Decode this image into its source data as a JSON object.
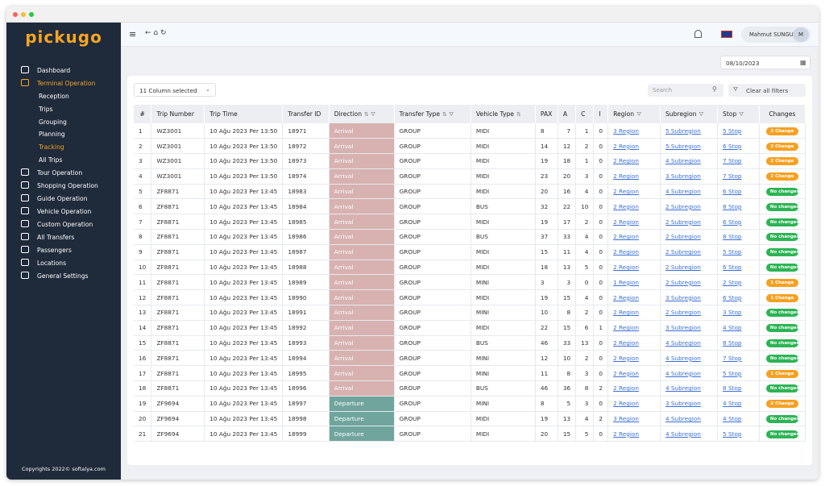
{
  "sidebar": {
    "logo": "pickugo",
    "menu": [
      {
        "label": "Dashboard"
      },
      {
        "label": "Terminal Operation",
        "active": true,
        "children": [
          {
            "label": "Reception"
          },
          {
            "label": "Trips"
          },
          {
            "label": "Grouping"
          },
          {
            "label": "Planning"
          },
          {
            "label": "Tracking",
            "active": true
          },
          {
            "label": "All Trips"
          }
        ]
      },
      {
        "label": "Tour Operation"
      },
      {
        "label": "Shopping Operation"
      },
      {
        "label": "Guide Operation"
      },
      {
        "label": "Vehicle Operation"
      },
      {
        "label": "Custom Operation"
      },
      {
        "label": "All Transfers"
      },
      {
        "label": "Passengers"
      },
      {
        "label": "Locations"
      },
      {
        "label": "General Settings"
      }
    ],
    "copyright": "Copyrights 2022© softalya.com"
  },
  "topbar": {
    "user": "Mahmut SUNGUR",
    "avatar": "M"
  },
  "filters": {
    "date": "08/10/2023",
    "columns": "11 Column selected",
    "search_placeholder": "Search",
    "clear": "Clear all filters"
  },
  "table": {
    "headers": [
      "#",
      "Trip Number",
      "Trip Time",
      "Transfer ID",
      "Direction",
      "Transfer Type",
      "Vehicle Type",
      "PAX",
      "A",
      "C",
      "I",
      "Region",
      "Subregion",
      "Stop",
      "Changes"
    ],
    "direction_colors": {
      "Arrival": "#d7b2b1",
      "Departure": "#6fa59d"
    },
    "change_colors": {
      "No changes": "#2cb454"
    },
    "change_default_color": "#f5a020",
    "rows": [
      [
        1,
        "WZ3001",
        "10 Ağu 2023 Per 13:50",
        18971,
        "Arrival",
        "GROUP",
        "MIDI",
        8,
        7,
        1,
        0,
        "3 Region",
        "5 Subregion",
        "5 Stop",
        "3 Change"
      ],
      [
        2,
        "WZ3001",
        "10 Ağu 2023 Per 13:50",
        18972,
        "Arrival",
        "GROUP",
        "MIDI",
        14,
        12,
        2,
        0,
        "2 Region",
        "5 Subregion",
        "6 Stop",
        "2 Change"
      ],
      [
        3,
        "WZ3001",
        "10 Ağu 2023 Per 13:50",
        18973,
        "Arrival",
        "GROUP",
        "MIDI",
        19,
        18,
        1,
        0,
        "2 Region",
        "4 Subregion",
        "7 Stop",
        "2 Change"
      ],
      [
        4,
        "WZ3001",
        "10 Ağu 2023 Per 13:50",
        18974,
        "Arrival",
        "GROUP",
        "MIDI",
        23,
        20,
        3,
        0,
        "2 Region",
        "3 Subregion",
        "7 Stop",
        "2 Change"
      ],
      [
        5,
        "ZF8871",
        "10 Ağu 2023 Per 13:45",
        18983,
        "Arrival",
        "GROUP",
        "MIDI",
        20,
        16,
        4,
        0,
        "2 Region",
        "4 Subregion",
        "6 Stop",
        "No changes"
      ],
      [
        6,
        "ZF8871",
        "10 Ağu 2023 Per 13:45",
        18984,
        "Arrival",
        "GROUP",
        "BUS",
        32,
        22,
        10,
        0,
        "2 Region",
        "2 Subregion",
        "8 Stop",
        "No changes"
      ],
      [
        7,
        "ZF8871",
        "10 Ağu 2023 Per 13:45",
        18985,
        "Arrival",
        "GROUP",
        "MIDI",
        19,
        17,
        2,
        0,
        "2 Region",
        "2 Subregion",
        "6 Stop",
        "No changes"
      ],
      [
        8,
        "ZF8871",
        "10 Ağu 2023 Per 13:45",
        18986,
        "Arrival",
        "GROUP",
        "BUS",
        37,
        33,
        4,
        0,
        "2 Region",
        "2 Subregion",
        "8 Stop",
        "No changes"
      ],
      [
        9,
        "ZF8871",
        "10 Ağu 2023 Per 13:45",
        18987,
        "Arrival",
        "GROUP",
        "MIDI",
        15,
        11,
        4,
        0,
        "2 Region",
        "2 Subregion",
        "5 Stop",
        "No changes"
      ],
      [
        10,
        "ZF8871",
        "10 Ağu 2023 Per 13:45",
        18988,
        "Arrival",
        "GROUP",
        "MIDI",
        18,
        13,
        5,
        0,
        "2 Region",
        "2 Subregion",
        "6 Stop",
        "No changes"
      ],
      [
        11,
        "ZF8871",
        "10 Ağu 2023 Per 13:45",
        18989,
        "Arrival",
        "GROUP",
        "MINI",
        3,
        3,
        0,
        0,
        "1 Region",
        "2 Subregion",
        "2 Stop",
        "1 Change"
      ],
      [
        12,
        "ZF8871",
        "10 Ağu 2023 Per 13:45",
        18990,
        "Arrival",
        "GROUP",
        "MIDI",
        19,
        15,
        4,
        0,
        "2 Region",
        "3 Subregion",
        "6 Stop",
        "1 Change"
      ],
      [
        13,
        "ZF8871",
        "10 Ağu 2023 Per 13:45",
        18991,
        "Arrival",
        "GROUP",
        "MINI",
        10,
        8,
        2,
        0,
        "2 Region",
        "2 Subregion",
        "3 Stop",
        "No changes"
      ],
      [
        14,
        "ZF8871",
        "10 Ağu 2023 Per 13:45",
        18992,
        "Arrival",
        "GROUP",
        "MIDI",
        22,
        15,
        6,
        1,
        "2 Region",
        "3 Subregion",
        "4 Stop",
        "No changes"
      ],
      [
        15,
        "ZF8871",
        "10 Ağu 2023 Per 13:45",
        18993,
        "Arrival",
        "GROUP",
        "BUS",
        46,
        33,
        13,
        0,
        "2 Region",
        "4 Subregion",
        "8 Stop",
        "No changes"
      ],
      [
        16,
        "ZF8871",
        "10 Ağu 2023 Per 13:45",
        18994,
        "Arrival",
        "GROUP",
        "MINI",
        12,
        10,
        2,
        0,
        "2 Region",
        "4 Subregion",
        "7 Stop",
        "No changes"
      ],
      [
        17,
        "ZF8871",
        "10 Ağu 2023 Per 13:45",
        18995,
        "Arrival",
        "GROUP",
        "MINI",
        11,
        8,
        3,
        0,
        "2 Region",
        "4 Subregion",
        "5 Stop",
        "1 Change"
      ],
      [
        18,
        "ZF8871",
        "10 Ağu 2023 Per 13:45",
        18996,
        "Arrival",
        "GROUP",
        "BUS",
        46,
        36,
        8,
        2,
        "2 Region",
        "4 Subregion",
        "8 Stop",
        "No changes"
      ],
      [
        19,
        "ZF9694",
        "10 Ağu 2023 Per 13:45",
        18997,
        "Departure",
        "GROUP",
        "MINI",
        8,
        5,
        3,
        0,
        "2 Region",
        "3 Subregion",
        "4 Stop",
        "2 Change"
      ],
      [
        20,
        "ZF9694",
        "10 Ağu 2023 Per 13:45",
        18998,
        "Departure",
        "GROUP",
        "MIDI",
        19,
        13,
        4,
        2,
        "3 Region",
        "4 Subregion",
        "4 Stop",
        "No changes"
      ],
      [
        21,
        "ZF9694",
        "10 Ağu 2023 Per 13:45",
        18999,
        "Departure",
        "GROUP",
        "MIDI",
        20,
        15,
        5,
        0,
        "2 Region",
        "4 Subregion",
        "5 Stop",
        "No changes"
      ]
    ]
  }
}
